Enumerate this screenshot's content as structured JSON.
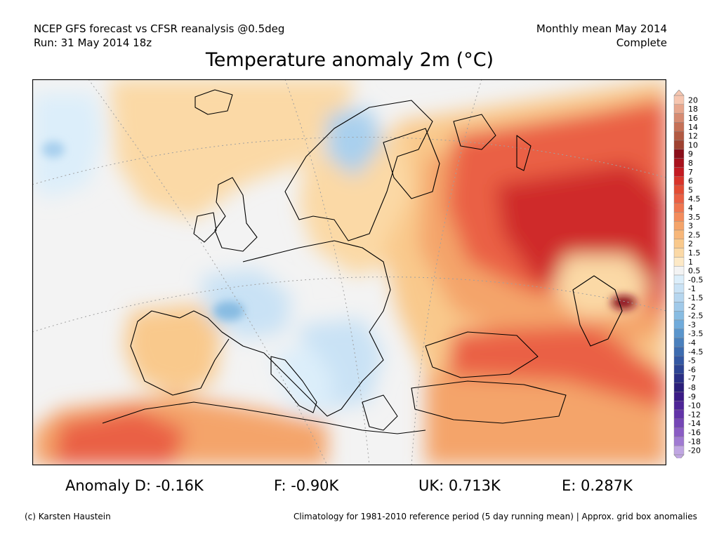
{
  "header": {
    "source_line": "NCEP GFS forecast vs CFSR reanalysis @0.5deg",
    "run_line": "Run: 31 May 2014 18z",
    "period_line": "Monthly mean May 2014",
    "status_line": "Complete"
  },
  "title": "Temperature anomaly 2m (°C)",
  "colors": {
    "background": "#ffffff",
    "near_zero": "#f3f3f3",
    "warm_light": "#fbd9a6",
    "warm_mid": "#f4a46a",
    "warm_strong": "#ea6044",
    "warm_deep": "#cf2a2a",
    "hot_max": "#8a0f1a",
    "cool_light": "#dceefa",
    "cool_mid": "#a9d0ee",
    "cool_strong": "#5a95cc",
    "border": "#000000"
  },
  "legend": {
    "labels": [
      "20",
      "18",
      "16",
      "14",
      "12",
      "10",
      "9",
      "8",
      "7",
      "6",
      "5",
      "4.5",
      "4",
      "3.5",
      "3",
      "2.5",
      "2",
      "1.5",
      "1",
      "0.5",
      "-0.5",
      "-1",
      "-1.5",
      "-2",
      "-2.5",
      "-3",
      "-3.5",
      "-4",
      "-4.5",
      "-5",
      "-6",
      "-7",
      "-8",
      "-9",
      "-10",
      "-12",
      "-14",
      "-16",
      "-18",
      "-20"
    ],
    "colors": [
      "#f6c6b0",
      "#e7a78e",
      "#d68b72",
      "#c57157",
      "#b25a42",
      "#9e4231",
      "#8a0f1a",
      "#a8121d",
      "#c31b22",
      "#d9342a",
      "#e34c34",
      "#ea6044",
      "#ef7650",
      "#f38c5c",
      "#f4a46a",
      "#f7b77a",
      "#f9c98c",
      "#fbd9a6",
      "#fde9c6",
      "#f3f3f3",
      "#dceefa",
      "#c9e2f5",
      "#b6d6ef",
      "#a0c9e9",
      "#88bce2",
      "#70abdb",
      "#5a95cc",
      "#4a80bd",
      "#3d6cb0",
      "#3458a3",
      "#2d4493",
      "#2a2f85",
      "#2b1f7a",
      "#3b1b86",
      "#4e2597",
      "#6233a8",
      "#7546b6",
      "#8a5cc4",
      "#a07ad2",
      "#c0a6e2"
    ]
  },
  "stats": {
    "germany": "Anomaly D: -0.16K",
    "france": "F: -0.90K",
    "uk": "UK: 0.713K",
    "europe": "E: 0.287K"
  },
  "footer": {
    "credit": "(c) Karsten Haustein",
    "note": "Climatology for 1981-2010 reference period (5 day running mean) | Approx. grid box anomalies"
  }
}
